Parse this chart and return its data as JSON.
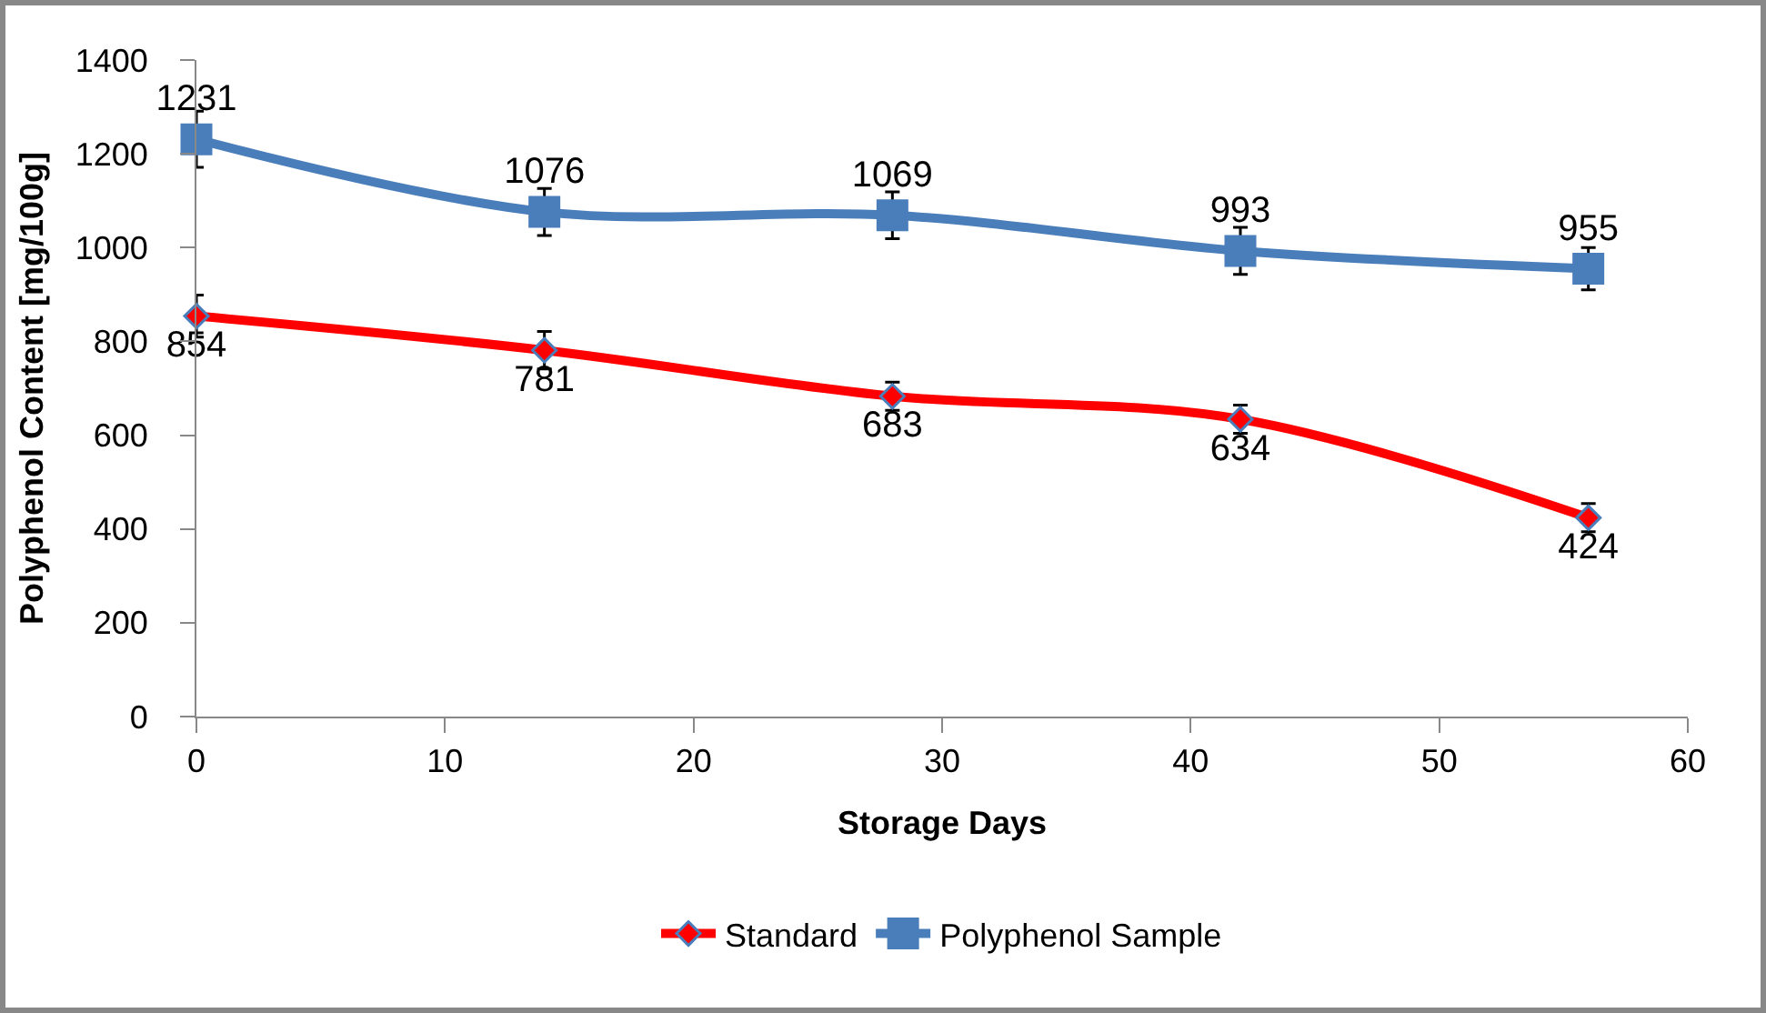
{
  "chart_data": {
    "type": "line",
    "xlabel": "Storage Days",
    "ylabel": "Polyphenol Content [mg/100g]",
    "x": [
      0,
      14,
      28,
      42,
      56
    ],
    "series": [
      {
        "name": "Standard",
        "color": "#ff0000",
        "values": [
          854,
          781,
          683,
          634,
          424
        ],
        "errors": [
          45,
          40,
          30,
          30,
          30
        ],
        "marker": "diamond"
      },
      {
        "name": "Polyphenol Sample",
        "color": "#4a7ebb",
        "values": [
          1231,
          1076,
          1069,
          993,
          955
        ],
        "errors": [
          60,
          50,
          50,
          50,
          45
        ],
        "marker": "square"
      }
    ],
    "xlim": [
      0,
      60
    ],
    "xticks": [
      0,
      10,
      20,
      30,
      40,
      50,
      60
    ],
    "ylim": [
      0,
      1400
    ],
    "yticks": [
      0,
      200,
      400,
      600,
      800,
      1000,
      1200,
      1400
    ],
    "grid": false,
    "legend": "bottom",
    "data_labels": true,
    "line_style": "solid"
  }
}
